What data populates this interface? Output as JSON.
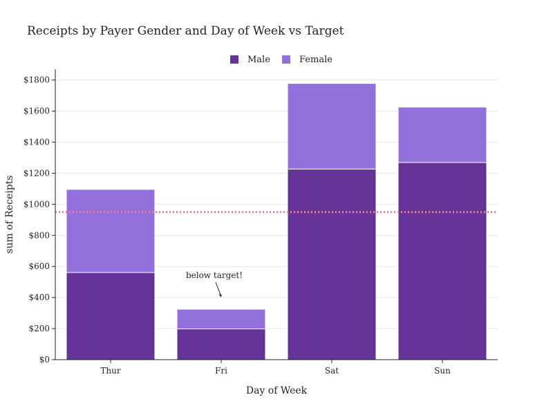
{
  "chart_data": {
    "type": "bar",
    "stacked": true,
    "title": "Receipts by Payer Gender and Day of Week vs Target",
    "xlabel": "Day of Week",
    "ylabel": "sum of Receipts",
    "categories": [
      "Thur",
      "Fri",
      "Sat",
      "Sun"
    ],
    "series": [
      {
        "name": "Male",
        "values": [
          561,
          198,
          1227,
          1269
        ],
        "color": "#663399"
      },
      {
        "name": "Female",
        "values": [
          535,
          127,
          551,
          357
        ],
        "color": "#9370db"
      }
    ],
    "ylim": [
      0,
      1870
    ],
    "yticks": [
      0,
      200,
      400,
      600,
      800,
      1000,
      1200,
      1400,
      1600,
      1800
    ],
    "ytick_labels": [
      "$0",
      "$200",
      "$400",
      "$600",
      "$800",
      "$1000",
      "$1200",
      "$1400",
      "$1600",
      "$1800"
    ],
    "target": {
      "value": 950,
      "color": "#f08080",
      "style": "dotted"
    },
    "annotation": {
      "text": "below target!",
      "category": "Fri",
      "y": 400
    },
    "grid": true,
    "legend_position": "top-center"
  }
}
